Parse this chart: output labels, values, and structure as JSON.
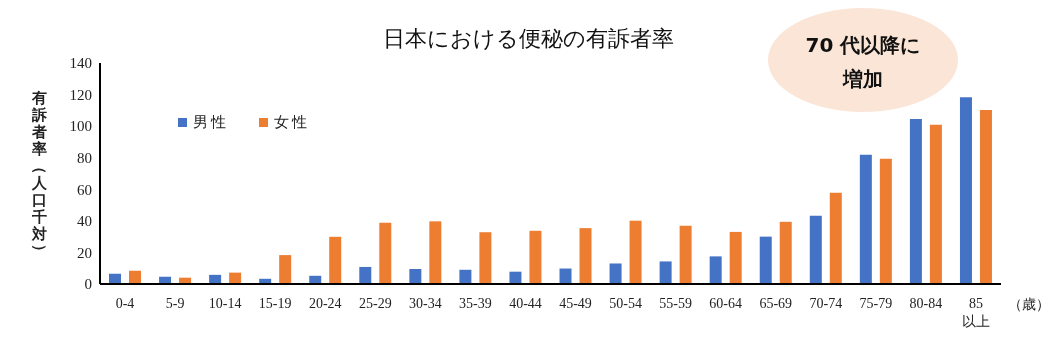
{
  "chart_data": {
    "type": "bar",
    "title": "日本における便秘の有訴者率",
    "ylabel": "有訴者率（人口千対）",
    "xlabel": "（歳）",
    "categories": [
      "0-4",
      "5-9",
      "10-14",
      "15-19",
      "20-24",
      "25-29",
      "30-34",
      "35-39",
      "40-44",
      "45-49",
      "50-54",
      "55-59",
      "60-64",
      "65-69",
      "70-74",
      "75-79",
      "80-84",
      "85\n以上"
    ],
    "series": [
      {
        "name": "男性",
        "color": "#4472c4",
        "values": [
          6.5,
          4.6,
          5.8,
          3.3,
          5.2,
          10.8,
          9.5,
          9,
          7.8,
          9.8,
          13,
          14.3,
          17.5,
          30,
          43.3,
          81.9,
          104.5,
          118.3
        ]
      },
      {
        "name": "女性",
        "color": "#ed7d31",
        "values": [
          8.4,
          4,
          7.2,
          18.3,
          29.9,
          38.8,
          39.7,
          32.8,
          33.7,
          35.4,
          40.1,
          36.9,
          33,
          39.4,
          57.8,
          79.3,
          100.9,
          110.2
        ]
      }
    ],
    "ylim": [
      0,
      140
    ],
    "yticks": [
      0,
      20,
      40,
      60,
      80,
      100,
      120,
      140
    ],
    "grid": false,
    "legend": "top left",
    "annotations": [
      "70 代以降に増加"
    ]
  }
}
